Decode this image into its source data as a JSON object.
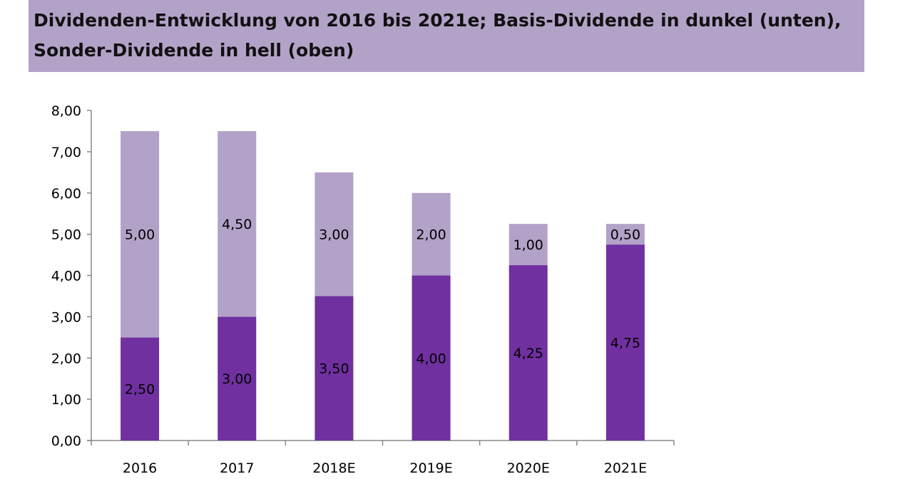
{
  "chart_data": {
    "type": "bar",
    "stacked": true,
    "title_lines": [
      "Dividenden-Entwicklung von 2016 bis 2021e; Basis-Dividende in dunkel (unten),",
      "Sonder-Dividende in hell (oben)"
    ],
    "categories": [
      "2016",
      "2017",
      "2018E",
      "2019E",
      "2020E",
      "2021E"
    ],
    "series": [
      {
        "values": [
          2.5,
          3.0,
          3.5,
          4.0,
          4.25,
          4.75
        ],
        "labels": [
          "2,50",
          "3,00",
          "3,50",
          "4,00",
          "4,25",
          "4,75"
        ],
        "color": "#7030a0"
      },
      {
        "values": [
          5.0,
          4.5,
          3.0,
          2.0,
          1.0,
          0.5
        ],
        "labels": [
          "5,00",
          "4,50",
          "3,00",
          "2,00",
          "1,00",
          "0,50"
        ],
        "color": "#b3a2c8"
      }
    ],
    "ylim": [
      0,
      8
    ],
    "yticks": [
      "0,00",
      "1,00",
      "2,00",
      "3,00",
      "4,00",
      "5,00",
      "6,00",
      "7,00",
      "8,00"
    ],
    "grid": false,
    "legend": "none"
  }
}
